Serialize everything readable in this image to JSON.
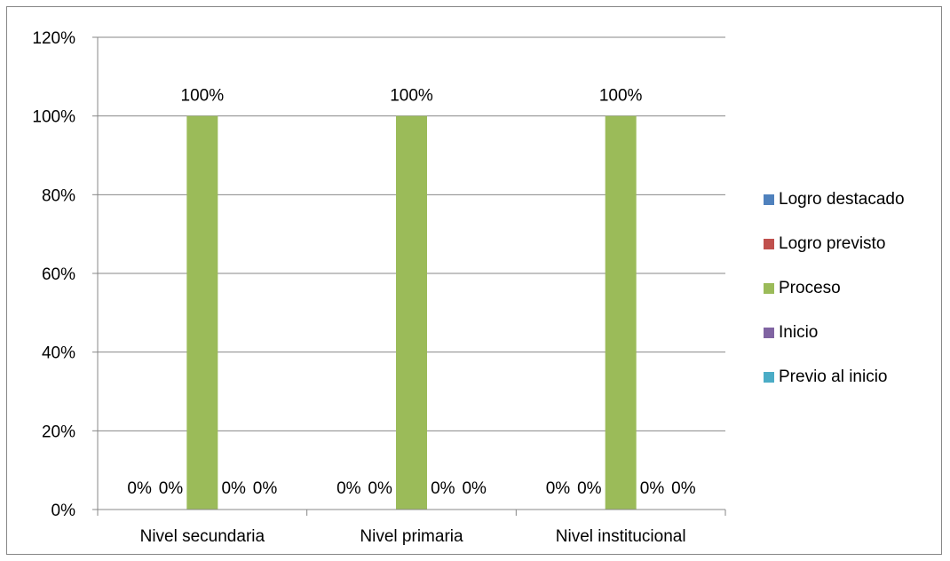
{
  "chart_data": {
    "type": "bar",
    "categories": [
      "Nivel secundaria",
      "Nivel primaria",
      "Nivel institucional"
    ],
    "series": [
      {
        "name": "Logro destacado",
        "values": [
          0,
          0,
          0
        ],
        "color": "#4f81bd"
      },
      {
        "name": "Logro previsto",
        "values": [
          0,
          0,
          0
        ],
        "color": "#c0504d"
      },
      {
        "name": "Proceso",
        "values": [
          100,
          100,
          100
        ],
        "color": "#9bbb59"
      },
      {
        "name": "Inicio",
        "values": [
          0,
          0,
          0
        ],
        "color": "#8064a2"
      },
      {
        "name": "Previo al inicio",
        "values": [
          0,
          0,
          0
        ],
        "color": "#4bacc6"
      }
    ],
    "data_labels": [
      [
        "0%",
        "0%",
        "100%",
        "0%",
        "0%"
      ],
      [
        "0%",
        "0%",
        "100%",
        "0%",
        "0%"
      ],
      [
        "0%",
        "0%",
        "100%",
        "0%",
        "0%"
      ]
    ],
    "yticks": [
      "0%",
      "20%",
      "40%",
      "60%",
      "80%",
      "100%",
      "120%"
    ],
    "ylim": [
      0,
      120
    ],
    "grid": true,
    "legend_position": "right"
  }
}
